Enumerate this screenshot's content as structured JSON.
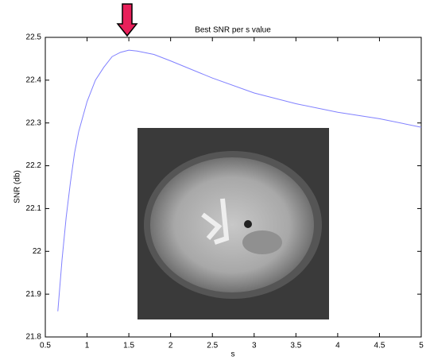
{
  "chart_data": {
    "type": "line",
    "title": "Best SNR per s value",
    "x_label": "s",
    "y_label": "SNR (db)",
    "x": [
      0.65,
      0.7,
      0.75,
      0.8,
      0.85,
      0.9,
      1.0,
      1.1,
      1.2,
      1.3,
      1.4,
      1.5,
      1.6,
      1.8,
      2.0,
      2.5,
      3.0,
      3.5,
      4.0,
      4.5,
      5.0
    ],
    "series": [
      {
        "color": "#8080ff",
        "values": [
          21.86,
          21.98,
          22.08,
          22.16,
          22.23,
          22.28,
          22.35,
          22.4,
          22.43,
          22.455,
          22.465,
          22.47,
          22.468,
          22.46,
          22.445,
          22.405,
          22.37,
          22.345,
          22.325,
          22.31,
          22.29
        ]
      }
    ],
    "xlim": [
      0.5,
      5
    ],
    "xticks": [
      0.5,
      1,
      1.5,
      2,
      2.5,
      3,
      3.5,
      4,
      4.5,
      5
    ],
    "ylim": [
      21.8,
      22.5
    ],
    "yticks": [
      21.8,
      21.9,
      22,
      22.1,
      22.2,
      22.3,
      22.4,
      22.5
    ]
  }
}
